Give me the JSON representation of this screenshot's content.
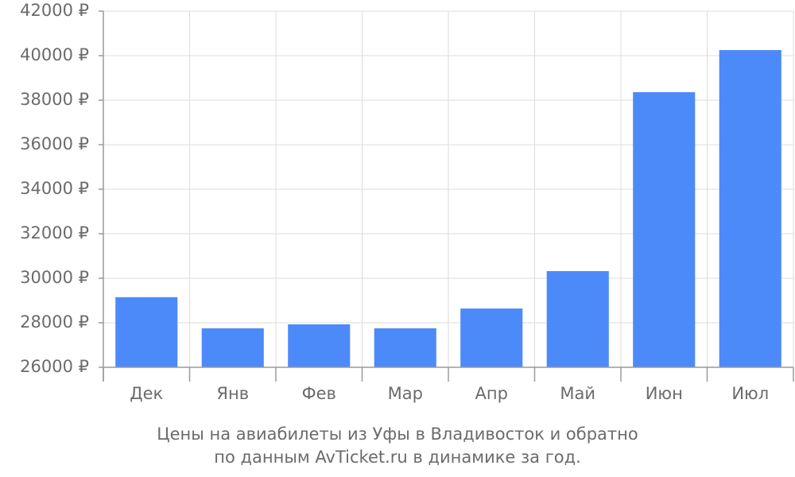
{
  "chart_data": {
    "type": "bar",
    "title_lines": [
      "Цены на авиабилеты из Уфы в Владивосток и обратно",
      "по данным AvTicket.ru в динамике за год."
    ],
    "categories": [
      "Дек",
      "Янв",
      "Фев",
      "Мар",
      "Апр",
      "Май",
      "Июн",
      "Июл"
    ],
    "values": [
      29150,
      27750,
      27930,
      27750,
      28640,
      30320,
      38360,
      40250
    ],
    "color": "#4d8af9",
    "ylim": [
      26000,
      42000
    ],
    "yticks": [
      {
        "value": 26000,
        "label": "26000 ₽"
      },
      {
        "value": 28000,
        "label": "28000 ₽"
      },
      {
        "value": 30000,
        "label": "30000 ₽"
      },
      {
        "value": 32000,
        "label": "32000 ₽"
      },
      {
        "value": 34000,
        "label": "34000 ₽"
      },
      {
        "value": 36000,
        "label": "36000 ₽"
      },
      {
        "value": 38000,
        "label": "38000 ₽"
      },
      {
        "value": 40000,
        "label": "40000 ₽"
      },
      {
        "value": 42000,
        "label": "42000 ₽"
      }
    ],
    "grid": true
  }
}
